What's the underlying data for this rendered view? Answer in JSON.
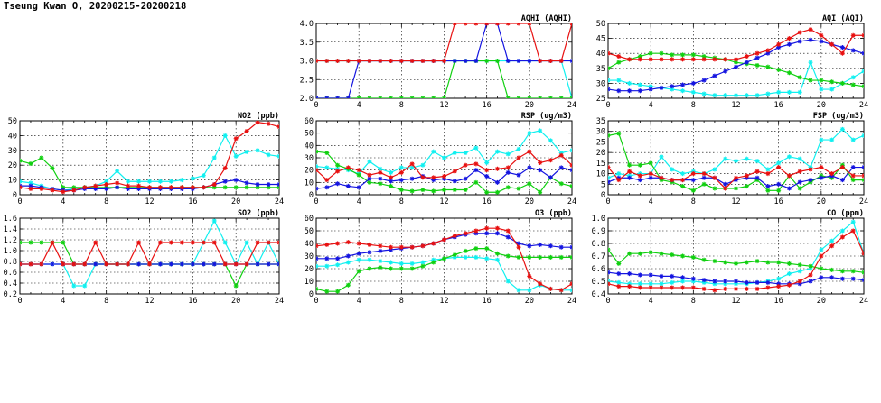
{
  "title": "Tseung Kwan O, 20200215-20200218",
  "colors": {
    "red": "#e81010",
    "blue": "#1414e0",
    "green": "#10d010",
    "cyan": "#10f0f0"
  },
  "chart_data": [
    {
      "id": "aqhi",
      "type": "line",
      "title": "AQHI (AQHI)",
      "xlim": [
        0,
        24
      ],
      "ylim": [
        2,
        4
      ],
      "yticks": [
        "2.0",
        "2.5",
        "3.0",
        "3.5",
        "4.0"
      ],
      "xticks": [
        "0",
        "4",
        "8",
        "12",
        "16",
        "20",
        "24"
      ],
      "series": [
        {
          "color": "red",
          "values": [
            3,
            3,
            3,
            3,
            3,
            3,
            3,
            3,
            3,
            3,
            3,
            3,
            3,
            4,
            4,
            4,
            4,
            4,
            4,
            4,
            4,
            3,
            3,
            3,
            4
          ]
        },
        {
          "color": "blue",
          "values": [
            2,
            2,
            2,
            2,
            3,
            3,
            3,
            3,
            3,
            3,
            3,
            3,
            3,
            3,
            3,
            3,
            4,
            4,
            3,
            3,
            3,
            3,
            3,
            3,
            3
          ]
        },
        {
          "color": "green",
          "values": [
            2,
            2,
            2,
            2,
            2,
            2,
            2,
            2,
            2,
            2,
            2,
            2,
            2,
            3,
            3,
            3,
            3,
            3,
            2,
            2,
            2,
            2,
            2,
            2,
            2
          ]
        },
        {
          "color": "cyan",
          "values": [
            3,
            3,
            3,
            3,
            3,
            3,
            3,
            3,
            3,
            3,
            3,
            3,
            3,
            3,
            3,
            3,
            3,
            3,
            3,
            3,
            3,
            3,
            3,
            3,
            2
          ]
        }
      ]
    },
    {
      "id": "aqi",
      "type": "line",
      "title": "AQI (AQI)",
      "xlim": [
        0,
        24
      ],
      "ylim": [
        25,
        50
      ],
      "yticks": [
        "25",
        "30",
        "35",
        "40",
        "45",
        "50"
      ],
      "xticks": [
        "0",
        "4",
        "8",
        "12",
        "16",
        "20",
        "24"
      ],
      "series": [
        {
          "color": "red",
          "values": [
            40,
            39,
            38,
            38,
            38,
            38,
            38,
            38,
            38,
            38,
            38,
            38,
            38,
            39,
            40,
            41,
            43,
            45,
            47,
            48,
            46,
            43,
            40,
            46,
            46
          ]
        },
        {
          "color": "blue",
          "values": [
            28,
            27.5,
            27.5,
            27.5,
            28,
            28.5,
            29,
            29.5,
            30,
            31,
            32.5,
            34,
            35.5,
            37,
            38.5,
            40,
            42,
            43,
            44,
            44.5,
            44,
            43,
            42,
            41,
            40
          ]
        },
        {
          "color": "green",
          "values": [
            35,
            37,
            38,
            39,
            40,
            40,
            39.5,
            39.5,
            39.5,
            39,
            38.5,
            38,
            37,
            36.5,
            36,
            35.5,
            34.5,
            33.5,
            32,
            31,
            31,
            30.5,
            30,
            29.5,
            29
          ]
        },
        {
          "color": "cyan",
          "values": [
            31,
            31,
            30,
            29.5,
            29,
            28.5,
            28,
            27.5,
            27,
            26.5,
            26,
            26,
            26,
            26,
            26,
            26.5,
            27,
            27,
            27,
            37,
            28,
            28,
            30,
            32,
            34
          ]
        }
      ]
    },
    {
      "id": "no2",
      "type": "line",
      "title": "NO2 (ppb)",
      "xlim": [
        0,
        24
      ],
      "ylim": [
        0,
        50
      ],
      "yticks": [
        "0",
        "10",
        "20",
        "30",
        "40",
        "50"
      ],
      "xticks": [
        "0",
        "4",
        "8",
        "12",
        "16",
        "20",
        "24"
      ],
      "series": [
        {
          "color": "red",
          "values": [
            5,
            4,
            4,
            3,
            2,
            3,
            5,
            6,
            7,
            8,
            6,
            6,
            5,
            5,
            5,
            5,
            5,
            5,
            7,
            18,
            38,
            43,
            49,
            48,
            46
          ]
        },
        {
          "color": "blue",
          "values": [
            6,
            6,
            5,
            4,
            3,
            3,
            4,
            4,
            4,
            5,
            4,
            4,
            4,
            4,
            4,
            4,
            4,
            5,
            7,
            9,
            10,
            8,
            7,
            7,
            7
          ]
        },
        {
          "color": "green",
          "values": [
            23,
            21,
            25,
            18,
            5,
            5,
            5,
            5,
            5,
            5,
            5,
            5,
            5,
            5,
            5,
            5,
            5,
            5,
            5,
            5,
            5,
            5,
            5,
            5,
            5
          ]
        },
        {
          "color": "cyan",
          "values": [
            9,
            8,
            6,
            4,
            3,
            4,
            5,
            6,
            9,
            16,
            9,
            9,
            9,
            9,
            9,
            10,
            11,
            13,
            25,
            40,
            26,
            29,
            30,
            27,
            26
          ]
        }
      ]
    },
    {
      "id": "rsp",
      "type": "line",
      "title": "RSP (ug/m3)",
      "xlim": [
        0,
        24
      ],
      "ylim": [
        0,
        60
      ],
      "yticks": [
        "0",
        "10",
        "20",
        "30",
        "40",
        "50",
        "60"
      ],
      "xticks": [
        "0",
        "4",
        "8",
        "12",
        "16",
        "20",
        "24"
      ],
      "series": [
        {
          "color": "red",
          "values": [
            20,
            12,
            19,
            22,
            20,
            16,
            18,
            14,
            18,
            25,
            14,
            14,
            15,
            19,
            24,
            25,
            20,
            21,
            22,
            30,
            35,
            26,
            28,
            32,
            24
          ]
        },
        {
          "color": "blue",
          "values": [
            5,
            6,
            9,
            7,
            6,
            13,
            13,
            11,
            12,
            13,
            15,
            12,
            13,
            11,
            13,
            20,
            15,
            10,
            18,
            16,
            22,
            20,
            14,
            22,
            20
          ]
        },
        {
          "color": "green",
          "values": [
            35,
            34,
            24,
            21,
            16,
            10,
            9,
            7,
            4,
            3,
            4,
            3,
            4,
            4,
            4,
            10,
            2,
            2,
            6,
            5,
            9,
            2,
            14,
            9,
            7
          ]
        },
        {
          "color": "cyan",
          "values": [
            23,
            22,
            21,
            20,
            17,
            27,
            21,
            18,
            22,
            22,
            24,
            35,
            30,
            34,
            34,
            38,
            26,
            35,
            33,
            37,
            50,
            52,
            44,
            34,
            36
          ]
        }
      ]
    },
    {
      "id": "fsp",
      "type": "line",
      "title": "FSP (ug/m3)",
      "xlim": [
        0,
        24
      ],
      "ylim": [
        0,
        35
      ],
      "yticks": [
        "0",
        "5",
        "10",
        "15",
        "20",
        "25",
        "30",
        "35"
      ],
      "xticks": [
        "0",
        "4",
        "8",
        "12",
        "16",
        "20",
        "24"
      ],
      "series": [
        {
          "color": "red",
          "values": [
            13,
            7,
            11,
            9,
            10,
            8,
            7,
            7,
            10,
            10,
            8,
            3,
            8,
            9,
            11,
            10,
            13,
            9,
            11,
            12,
            13,
            10,
            13,
            9,
            9
          ]
        },
        {
          "color": "blue",
          "values": [
            6,
            8,
            8,
            7,
            8,
            8,
            7,
            7,
            7,
            8,
            8,
            5,
            7,
            8,
            8,
            4,
            5,
            3,
            6,
            7,
            8,
            9,
            7,
            13,
            13
          ]
        },
        {
          "color": "green",
          "values": [
            28,
            29,
            14,
            14,
            15,
            7,
            6,
            4,
            2,
            5,
            3,
            3,
            3,
            4,
            7,
            2,
            2,
            9,
            3,
            6,
            9,
            8,
            14,
            7,
            7
          ]
        },
        {
          "color": "cyan",
          "values": [
            8,
            10,
            9,
            10,
            10,
            18,
            12,
            10,
            11,
            10,
            12,
            17,
            16,
            17,
            16,
            12,
            15,
            18,
            17,
            13,
            26,
            26,
            31,
            26,
            28
          ]
        }
      ]
    },
    {
      "id": "so2",
      "type": "line",
      "title": "SO2 (ppb)",
      "xlim": [
        0,
        24
      ],
      "ylim": [
        0.2,
        1.6
      ],
      "yticks": [
        "0.2",
        "0.4",
        "0.6",
        "0.8",
        "1.0",
        "1.2",
        "1.4",
        "1.6"
      ],
      "xticks": [
        "0",
        "4",
        "8",
        "12",
        "16",
        "20",
        "24"
      ],
      "series": [
        {
          "color": "red",
          "values": [
            0.75,
            0.75,
            0.75,
            1.15,
            0.75,
            0.75,
            0.75,
            1.15,
            0.75,
            0.75,
            0.75,
            1.15,
            0.75,
            1.15,
            1.15,
            1.15,
            1.15,
            1.15,
            1.15,
            0.75,
            0.75,
            0.75,
            1.15,
            1.15,
            1.15
          ]
        },
        {
          "color": "blue",
          "values": [
            0.75,
            0.75,
            0.75,
            0.75,
            0.75,
            0.75,
            0.75,
            0.75,
            0.75,
            0.75,
            0.75,
            0.75,
            0.75,
            0.75,
            0.75,
            0.75,
            0.75,
            0.75,
            0.75,
            0.75,
            0.75,
            0.75,
            0.75,
            0.75,
            0.75
          ]
        },
        {
          "color": "green",
          "values": [
            1.15,
            1.15,
            1.15,
            1.15,
            1.15,
            0.75,
            0.75,
            0.75,
            0.75,
            0.75,
            0.75,
            0.75,
            0.75,
            0.75,
            0.75,
            0.75,
            0.75,
            0.75,
            0.75,
            0.75,
            0.35,
            0.75,
            0.75,
            0.75,
            0.75
          ]
        },
        {
          "color": "cyan",
          "values": [
            0.75,
            0.75,
            0.75,
            0.75,
            0.75,
            0.35,
            0.35,
            0.75,
            0.75,
            0.75,
            0.75,
            0.75,
            0.75,
            0.75,
            0.75,
            0.75,
            0.75,
            1.15,
            1.55,
            1.15,
            0.75,
            1.15,
            0.75,
            1.15,
            0.75
          ]
        }
      ]
    },
    {
      "id": "o3",
      "type": "line",
      "title": "O3 (ppb)",
      "xlim": [
        0,
        24
      ],
      "ylim": [
        0,
        60
      ],
      "yticks": [
        "0",
        "10",
        "20",
        "30",
        "40",
        "50",
        "60"
      ],
      "xticks": [
        "0",
        "4",
        "8",
        "12",
        "16",
        "20",
        "24"
      ],
      "series": [
        {
          "color": "red",
          "values": [
            38,
            39,
            40,
            41,
            40,
            39,
            38,
            37,
            37,
            37,
            38,
            40,
            43,
            46,
            48,
            50,
            52,
            52,
            50,
            37,
            14,
            8,
            4,
            3,
            8
          ]
        },
        {
          "color": "blue",
          "values": [
            28,
            28,
            28,
            30,
            32,
            33,
            34,
            35,
            36,
            37,
            38,
            40,
            43,
            45,
            47,
            48,
            48,
            48,
            45,
            40,
            38,
            39,
            38,
            37,
            37
          ]
        },
        {
          "color": "green",
          "values": [
            4,
            2,
            2,
            7,
            18,
            20,
            21,
            20,
            20,
            20,
            22,
            25,
            28,
            31,
            34,
            36,
            36,
            32,
            30,
            29,
            29,
            29,
            29,
            29,
            29
          ]
        },
        {
          "color": "cyan",
          "values": [
            22,
            22,
            23,
            25,
            27,
            27,
            26,
            25,
            24,
            24,
            25,
            27,
            28,
            29,
            29,
            29,
            28,
            27,
            10,
            3,
            3,
            7,
            4,
            3,
            3
          ]
        }
      ]
    },
    {
      "id": "co",
      "type": "line",
      "title": "CO (ppm)",
      "xlim": [
        0,
        24
      ],
      "ylim": [
        0.4,
        1.0
      ],
      "yticks": [
        "0.4",
        "0.5",
        "0.6",
        "0.7",
        "0.8",
        "0.9",
        "1.0"
      ],
      "xticks": [
        "0",
        "4",
        "8",
        "12",
        "16",
        "20",
        "24"
      ],
      "series": [
        {
          "color": "red",
          "values": [
            0.48,
            0.46,
            0.46,
            0.45,
            0.45,
            0.45,
            0.45,
            0.45,
            0.45,
            0.44,
            0.43,
            0.44,
            0.44,
            0.44,
            0.44,
            0.45,
            0.46,
            0.47,
            0.5,
            0.55,
            0.7,
            0.78,
            0.85,
            0.9,
            0.72
          ]
        },
        {
          "color": "blue",
          "values": [
            0.57,
            0.56,
            0.56,
            0.55,
            0.55,
            0.54,
            0.54,
            0.53,
            0.52,
            0.51,
            0.5,
            0.5,
            0.5,
            0.49,
            0.49,
            0.49,
            0.48,
            0.48,
            0.48,
            0.5,
            0.53,
            0.53,
            0.52,
            0.52,
            0.51
          ]
        },
        {
          "color": "green",
          "values": [
            0.75,
            0.64,
            0.72,
            0.72,
            0.73,
            0.72,
            0.71,
            0.7,
            0.69,
            0.67,
            0.66,
            0.65,
            0.64,
            0.65,
            0.66,
            0.65,
            0.65,
            0.64,
            0.63,
            0.62,
            0.6,
            0.59,
            0.58,
            0.58,
            0.57
          ]
        },
        {
          "color": "cyan",
          "values": [
            0.5,
            0.49,
            0.48,
            0.48,
            0.48,
            0.48,
            0.49,
            0.5,
            0.5,
            0.49,
            0.48,
            0.48,
            0.48,
            0.48,
            0.49,
            0.5,
            0.52,
            0.56,
            0.58,
            0.6,
            0.75,
            0.82,
            0.9,
            0.97,
            0.72
          ]
        }
      ]
    }
  ]
}
